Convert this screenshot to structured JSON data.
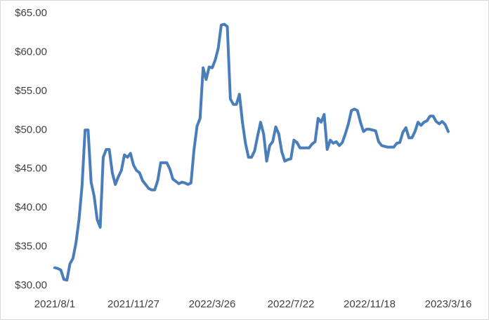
{
  "chart_data": {
    "type": "line",
    "categories": [
      "2021/8/1",
      null,
      null,
      null,
      null,
      null,
      null,
      null,
      null,
      null,
      null,
      null,
      null,
      null,
      null,
      null,
      null,
      null,
      null,
      null,
      null,
      null,
      null,
      null,
      null,
      null,
      "2021/11/27",
      null,
      null,
      null,
      null,
      null,
      null,
      null,
      null,
      null,
      null,
      null,
      null,
      null,
      null,
      null,
      null,
      null,
      null,
      null,
      null,
      null,
      null,
      null,
      null,
      null,
      "2022/3/26",
      null,
      null,
      null,
      null,
      null,
      null,
      null,
      null,
      null,
      null,
      null,
      null,
      null,
      null,
      null,
      null,
      null,
      null,
      null,
      null,
      null,
      null,
      null,
      null,
      null,
      "2022/7/22",
      null,
      null,
      null,
      null,
      null,
      null,
      null,
      null,
      null,
      null,
      null,
      null,
      null,
      null,
      null,
      null,
      null,
      null,
      null,
      null,
      null,
      null,
      null,
      null,
      null,
      "2022/11/18",
      null,
      null,
      null,
      null,
      null,
      null,
      null,
      null,
      null,
      null,
      null,
      null,
      null,
      null,
      null,
      null,
      null,
      null,
      null,
      null,
      null,
      null,
      null,
      null,
      null,
      "2023/3/16"
    ],
    "values": [
      32.3,
      32.2,
      32.0,
      30.8,
      30.7,
      32.8,
      33.5,
      35.5,
      38.5,
      42.8,
      50.0,
      50.0,
      43.3,
      41.5,
      38.5,
      37.5,
      46.5,
      47.5,
      47.5,
      44.5,
      43.0,
      44.0,
      44.8,
      46.8,
      46.5,
      47.0,
      45.5,
      44.8,
      44.5,
      43.5,
      43.0,
      42.5,
      42.3,
      42.3,
      43.5,
      45.8,
      45.8,
      45.8,
      45.0,
      43.7,
      43.4,
      43.1,
      43.3,
      43.2,
      43.0,
      43.2,
      47.5,
      50.5,
      51.5,
      58.0,
      56.5,
      58.1,
      58.0,
      59.0,
      60.5,
      63.5,
      63.6,
      63.3,
      54.0,
      53.3,
      53.3,
      54.6,
      51.0,
      48.3,
      46.5,
      46.5,
      47.3,
      49.2,
      51.0,
      49.5,
      46.0,
      48.0,
      48.5,
      50.4,
      49.5,
      47.2,
      46.0,
      46.2,
      46.3,
      48.7,
      48.4,
      47.7,
      47.7,
      47.7,
      47.7,
      48.2,
      48.5,
      51.5,
      51.0,
      52.0,
      47.5,
      48.7,
      48.3,
      48.5,
      48.0,
      48.4,
      49.5,
      50.8,
      52.5,
      52.7,
      52.5,
      51.0,
      49.8,
      50.1,
      50.1,
      50.0,
      49.9,
      48.5,
      48.0,
      47.9,
      47.8,
      47.8,
      47.8,
      48.3,
      48.4,
      49.7,
      50.3,
      49.0,
      49.0,
      49.8,
      51.0,
      50.6,
      51.0,
      51.2,
      51.8,
      51.8,
      51.1,
      50.8,
      51.1,
      50.7,
      49.8
    ],
    "color": "#4a7ebb",
    "ylim": [
      30,
      65
    ],
    "yticks": [
      {
        "value": 30,
        "label": "$30.00"
      },
      {
        "value": 35,
        "label": "$35.00"
      },
      {
        "value": 40,
        "label": "$40.00"
      },
      {
        "value": 45,
        "label": "$45.00"
      },
      {
        "value": 50,
        "label": "$50.00"
      },
      {
        "value": 55,
        "label": "$55.00"
      },
      {
        "value": 60,
        "label": "$60.00"
      },
      {
        "value": 65,
        "label": "$65.00"
      }
    ],
    "grid": false
  }
}
